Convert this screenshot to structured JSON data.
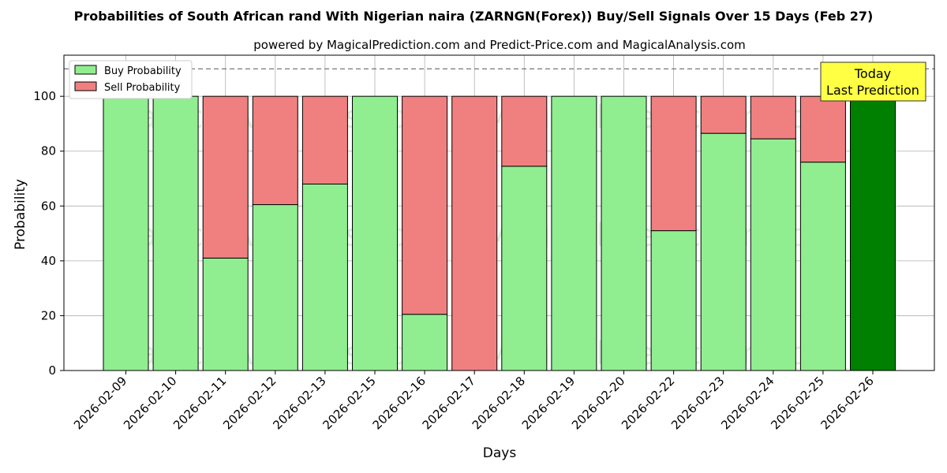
{
  "chart_data": {
    "type": "bar",
    "stacked": true,
    "title": "Probabilities of South African rand With Nigerian naira (ZARNGN(Forex)) Buy/Sell Signals Over 15 Days (Feb 27)",
    "subtitle": "powered by MagicalPrediction.com and Predict-Price.com and MagicalAnalysis.com",
    "xlabel": "Days",
    "ylabel": "Probability",
    "ylim": [
      0,
      115
    ],
    "yticks": [
      0,
      20,
      40,
      60,
      80,
      100
    ],
    "reference_line": 110,
    "grid": true,
    "legend_position": "top-left",
    "categories": [
      "2026-02-09",
      "2026-02-10",
      "2026-02-11",
      "2026-02-12",
      "2026-02-13",
      "2026-02-15",
      "2026-02-16",
      "2026-02-17",
      "2026-02-18",
      "2026-02-19",
      "2026-02-20",
      "2026-02-22",
      "2026-02-23",
      "2026-02-24",
      "2026-02-25",
      "2026-02-26"
    ],
    "series": [
      {
        "name": "Buy Probability",
        "color": "#90ee90",
        "values": [
          100,
          100,
          41,
          60.5,
          68,
          100,
          20.5,
          0,
          74.5,
          100,
          100,
          51,
          86.5,
          84.5,
          76,
          100
        ]
      },
      {
        "name": "Sell Probability",
        "color": "#f08080",
        "values": [
          0,
          0,
          59,
          39.5,
          32,
          0,
          79.5,
          100,
          25.5,
          0,
          0,
          49,
          13.5,
          15.5,
          24,
          0
        ]
      }
    ],
    "highlight": {
      "index": 15,
      "color": "#008000"
    },
    "annotation": {
      "line1": "Today",
      "line2": "Last Prediction",
      "color": "#ffff44"
    },
    "watermarks": [
      "MagicalAnalysis.com",
      "MagicalPrediction.com"
    ]
  }
}
